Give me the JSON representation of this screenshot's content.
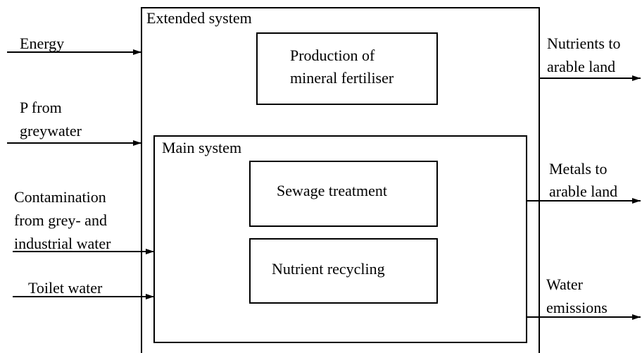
{
  "extended_system": {
    "label": "Extended system",
    "box": {
      "label": [
        "Production of",
        "mineral fertiliser"
      ]
    }
  },
  "main_system": {
    "label": "Main system",
    "boxes": [
      {
        "label": [
          "Sewage treatment"
        ]
      },
      {
        "label": [
          "Nutrient recycling"
        ]
      }
    ]
  },
  "inputs": [
    {
      "label": [
        "Energy"
      ]
    },
    {
      "label": [
        "P from",
        "greywater"
      ]
    },
    {
      "label": [
        "Contamination",
        "from grey- and",
        "industrial water"
      ]
    },
    {
      "label": [
        "Toilet water"
      ]
    }
  ],
  "outputs": [
    {
      "label": [
        "Nutrients to",
        "arable land"
      ]
    },
    {
      "label": [
        "Metals to",
        "arable land"
      ]
    },
    {
      "label": [
        "Water",
        "emissions"
      ]
    }
  ]
}
